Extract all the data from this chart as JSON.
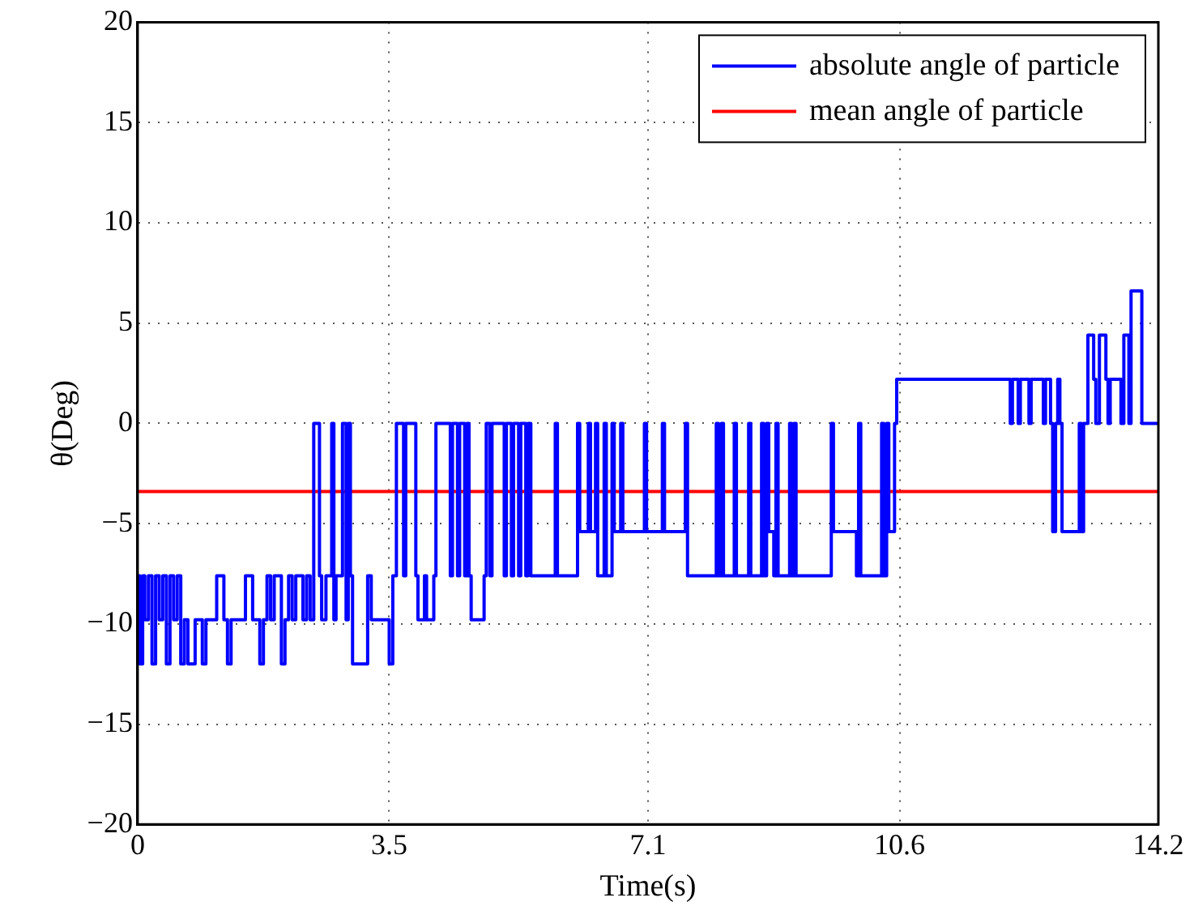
{
  "chart_data": {
    "type": "line",
    "xlabel": "Time(s)",
    "ylabel": "θ(Deg)",
    "xlim": [
      0,
      14.2
    ],
    "xticks": [
      0,
      3.5,
      7.1,
      10.6,
      14.2
    ],
    "ylim": [
      -20,
      20
    ],
    "yticks": [
      {
        "value": -20,
        "label": "−20"
      },
      {
        "value": -15,
        "label": "−15"
      },
      {
        "value": -10,
        "label": "−10"
      },
      {
        "value": -5,
        "label": "−5"
      },
      0,
      5,
      10,
      15,
      20
    ],
    "grid": true,
    "legend": "top right",
    "marker": "none",
    "line_style": "solid",
    "series": [
      {
        "name": "absolute angle of particle",
        "color": "#0000ff",
        "type": "step",
        "x": [
          0,
          0.03,
          0.07,
          0.1,
          0.15,
          0.2,
          0.25,
          0.3,
          0.35,
          0.4,
          0.45,
          0.5,
          0.55,
          0.6,
          0.65,
          0.7,
          0.8,
          0.9,
          0.95,
          1.1,
          1.2,
          1.25,
          1.3,
          1.5,
          1.6,
          1.7,
          1.75,
          1.8,
          1.85,
          1.9,
          2.0,
          2.05,
          2.1,
          2.15,
          2.2,
          2.3,
          2.35,
          2.4,
          2.45,
          2.53,
          2.56,
          2.62,
          2.7,
          2.73,
          2.76,
          2.85,
          2.9,
          2.93,
          2.96,
          2.99,
          3.2,
          3.25,
          3.5,
          3.55,
          3.6,
          3.7,
          3.73,
          3.87,
          3.9,
          3.99,
          4.02,
          4.12,
          4.15,
          4.35,
          4.38,
          4.45,
          4.48,
          4.55,
          4.58,
          4.61,
          4.64,
          4.82,
          4.85,
          4.9,
          4.93,
          5.1,
          5.13,
          5.2,
          5.23,
          5.3,
          5.33,
          5.4,
          5.43,
          5.47,
          5.81,
          5.84,
          6.12,
          6.15,
          6.27,
          6.3,
          6.37,
          6.4,
          6.49,
          6.52,
          6.6,
          6.63,
          6.72,
          6.75,
          7.05,
          7.08,
          7.3,
          7.33,
          7.62,
          7.65,
          8.05,
          8.08,
          8.12,
          8.15,
          8.3,
          8.33,
          8.5,
          8.53,
          8.68,
          8.71,
          8.75,
          8.78,
          8.85,
          8.88,
          8.91,
          9.07,
          9.1,
          9.13,
          9.16,
          9.65,
          9.68,
          10.0,
          10.03,
          10.06,
          10.35,
          10.38,
          10.42,
          10.45,
          10.53,
          10.56,
          12.14,
          12.17,
          12.25,
          12.28,
          12.4,
          12.43,
          12.6,
          12.63,
          12.7,
          12.73,
          12.77,
          12.8,
          12.83,
          12.86,
          13.1,
          13.13,
          13.16,
          13.22,
          13.3,
          13.33,
          13.38,
          13.47,
          13.5,
          13.53,
          13.68,
          13.72,
          13.79,
          13.82,
          13.97,
          14.0,
          14.2
        ],
        "values": [
          -9.8,
          -7.6,
          -12,
          -7.6,
          -9.8,
          -7.6,
          -12,
          -7.6,
          -9.8,
          -7.6,
          -12,
          -7.6,
          -9.8,
          -7.6,
          -12,
          -9.8,
          -12,
          -9.8,
          -12,
          -9.8,
          -7.6,
          -9.8,
          -12,
          -9.8,
          -7.6,
          -9.8,
          -12,
          -9.8,
          -7.6,
          -9.8,
          -7.6,
          -12,
          -9.8,
          -7.6,
          -9.8,
          -7.6,
          -9.8,
          -7.6,
          -9.8,
          0,
          -7.6,
          -9.8,
          -7.6,
          0,
          -9.8,
          -7.6,
          0,
          -9.8,
          0,
          -7.6,
          -12,
          -7.6,
          -9.8,
          -12,
          -7.6,
          0,
          -7.6,
          0,
          -7.6,
          -9.8,
          -7.6,
          -9.8,
          -7.6,
          0,
          -7.6,
          0,
          -7.6,
          0,
          -7.6,
          0,
          -7.6,
          -9.8,
          -7.6,
          0,
          -7.6,
          0,
          -7.6,
          0,
          -7.6,
          0,
          -7.6,
          0,
          -7.6,
          0,
          -7.6,
          0,
          -7.6,
          0,
          -5.4,
          0,
          -5.4,
          0,
          -7.6,
          0,
          -7.6,
          0,
          -5.4,
          0,
          -5.4,
          0,
          -5.4,
          0,
          -5.4,
          0,
          -7.6,
          0,
          -7.6,
          0,
          -7.6,
          0,
          -7.6,
          0,
          -7.6,
          0,
          -7.6,
          0,
          -5.4,
          -7.6,
          0,
          -7.6,
          0,
          -7.6,
          0,
          -7.6,
          0,
          -5.4,
          -7.6,
          0,
          -7.6,
          0,
          -7.6,
          0,
          -5.4,
          0,
          2.2,
          0,
          2.2,
          0,
          2.2,
          0,
          2.2,
          0,
          2.2,
          0,
          -5.4,
          0,
          2.2,
          0,
          -5.4,
          0,
          -5.4,
          0,
          4.4,
          2.2,
          0,
          4.4,
          2.2,
          0,
          2.2,
          0,
          4.4,
          0,
          6.6,
          0,
          0
        ]
      },
      {
        "name": "mean angle of particle",
        "color": "#ff0000",
        "type": "line",
        "x": [
          0,
          14.2
        ],
        "values": [
          -3.4,
          -3.4
        ]
      }
    ]
  }
}
